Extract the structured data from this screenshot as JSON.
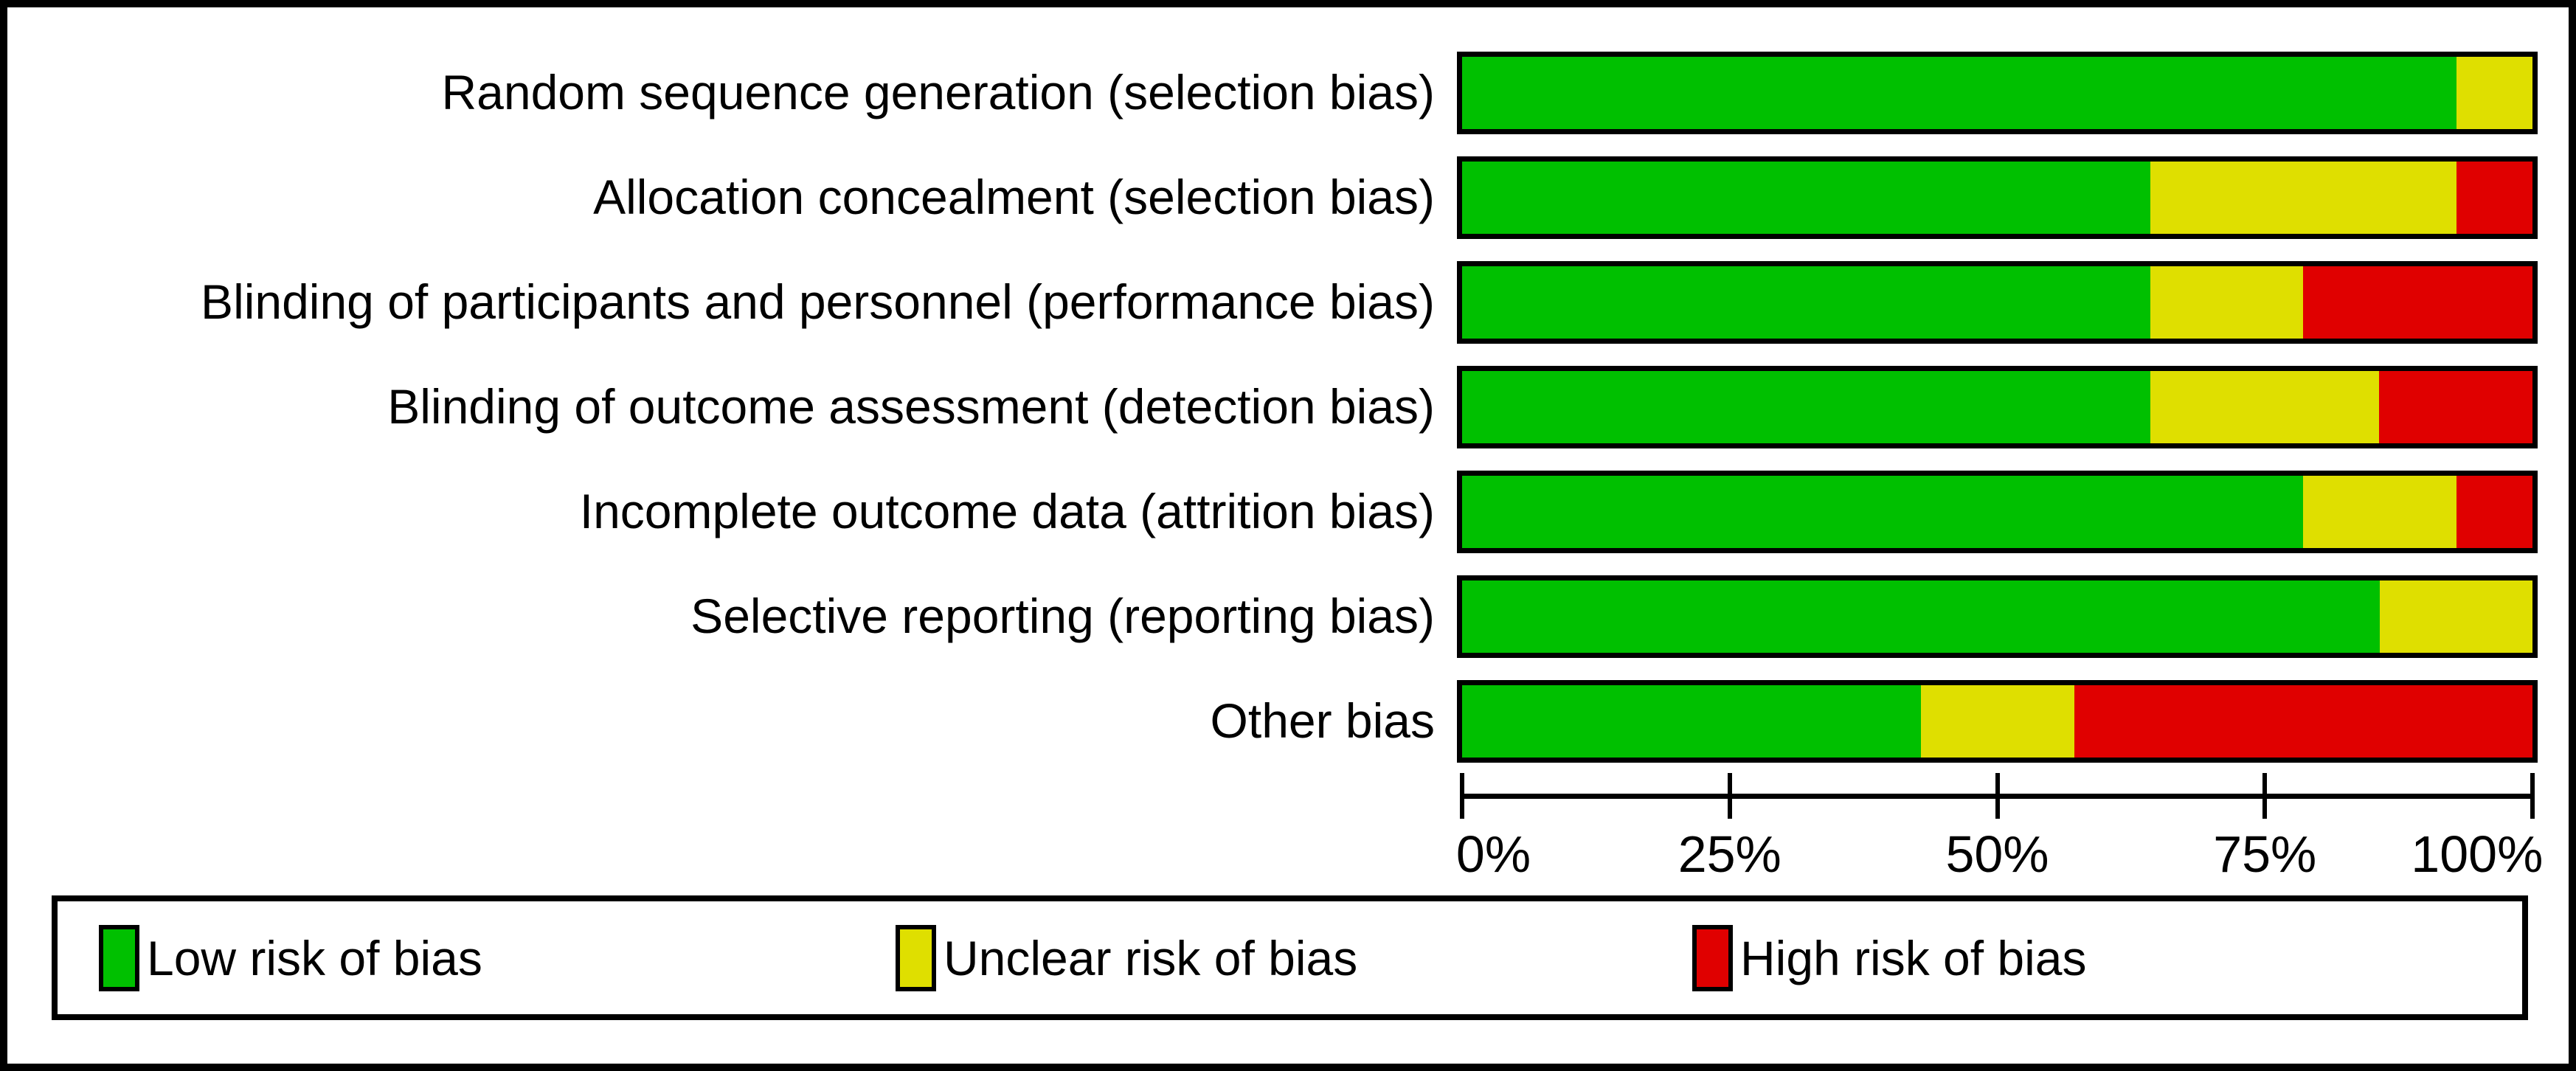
{
  "figure_name": "risk-of-bias-graph",
  "chart_data": {
    "type": "bar",
    "orientation": "horizontal",
    "stacked": true,
    "units": "percent of included studies",
    "categories": [
      "Random sequence generation (selection bias)",
      "Allocation concealment (selection bias)",
      "Blinding of participants and personnel (performance bias)",
      "Blinding of outcome assessment (detection bias)",
      "Incomplete outcome data (attrition bias)",
      "Selective reporting (reporting bias)",
      "Other bias"
    ],
    "series": [
      {
        "name": "Low risk of bias",
        "color": "#00c000",
        "values": [
          92.9,
          64.3,
          64.3,
          64.3,
          78.6,
          85.7,
          42.9
        ]
      },
      {
        "name": "Unclear risk of bias",
        "color": "#dfdf00",
        "values": [
          7.1,
          28.6,
          14.3,
          21.4,
          14.3,
          14.3,
          14.3
        ]
      },
      {
        "name": "High risk of bias",
        "color": "#e00000",
        "values": [
          0,
          7.1,
          21.4,
          14.3,
          7.1,
          0,
          42.8
        ]
      }
    ],
    "xlim": [
      0,
      100
    ],
    "x_ticks": [
      "0%",
      "25%",
      "50%",
      "75%",
      "100%"
    ],
    "grid": false,
    "legend_position": "bottom"
  }
}
